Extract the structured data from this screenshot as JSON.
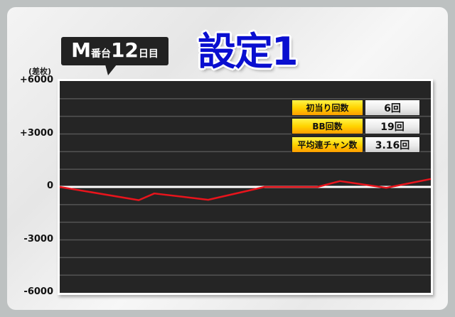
{
  "header": {
    "machine_prefix": "M",
    "machine_suffix": "番台",
    "day_number": "12",
    "day_suffix": "日目",
    "title": "設定1"
  },
  "chart_data": {
    "type": "line",
    "ylabel": "(差枚)",
    "ylim": [
      -6000,
      6000
    ],
    "yticks": [
      "+6000",
      "+3000",
      "0",
      "-3000",
      "-6000"
    ],
    "ytick_values": [
      6000,
      3000,
      0,
      -3000,
      -6000
    ],
    "grid": true,
    "grid_step": 1000,
    "xlim": [
      0,
      100
    ],
    "x": [
      0,
      21.3,
      25.5,
      40.0,
      55.2,
      69.5,
      75.5,
      88.0,
      100
    ],
    "series": [
      {
        "values": [
          0,
          -750,
          -370,
          -730,
          0,
          0,
          330,
          -50,
          450
        ],
        "color": "#e8141c"
      }
    ],
    "zero_line_color": "#ffffff",
    "background": "#252525"
  },
  "stats": [
    {
      "label": "初当り回数",
      "value": "6回"
    },
    {
      "label": "BB回数",
      "value": "19回"
    },
    {
      "label": "平均連チャン数",
      "value": "3.16回"
    }
  ]
}
